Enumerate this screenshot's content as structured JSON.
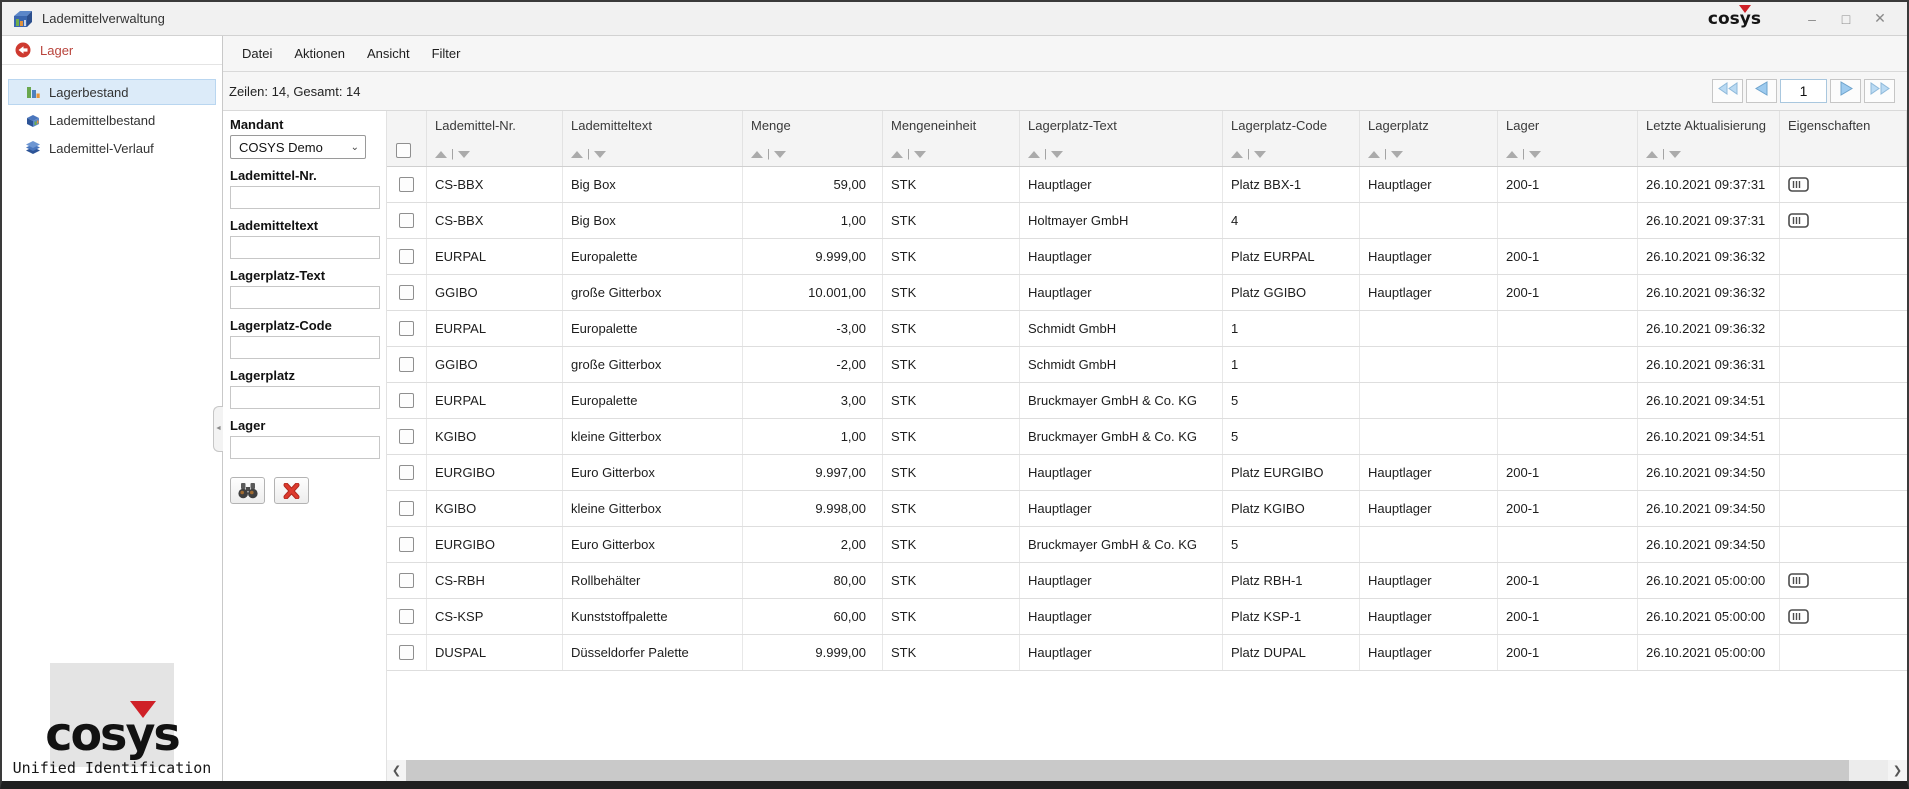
{
  "titlebar": {
    "app_title": "Lademittelverwaltung",
    "brand": "cosys",
    "controls": {
      "minimize": "–",
      "maximize": "□",
      "close": "✕"
    }
  },
  "sidebar": {
    "header": {
      "label": "Lager",
      "icon": "red-circle-arrow-icon"
    },
    "items": [
      {
        "label": "Lagerbestand",
        "icon": "bar-chart-icon",
        "selected": true
      },
      {
        "label": "Lademittelbestand",
        "icon": "box-icon",
        "selected": false
      },
      {
        "label": "Lademittel-Verlauf",
        "icon": "layers-icon",
        "selected": false
      }
    ],
    "logo": {
      "brand": "cosys",
      "subtitle": "Unified Identification"
    }
  },
  "menubar": {
    "items": [
      "Datei",
      "Aktionen",
      "Ansicht",
      "Filter"
    ]
  },
  "statusbar": {
    "rows_info": "Zeilen: 14, Gesamt: 14",
    "pagination": {
      "page": "1",
      "buttons": [
        "first-page",
        "prev-page",
        "next-page",
        "last-page"
      ]
    }
  },
  "filter": {
    "mandant": {
      "label": "Mandant",
      "value": "COSYS Demo"
    },
    "fields": [
      {
        "label": "Lademittel-Nr.",
        "value": ""
      },
      {
        "label": "Lademitteltext",
        "value": ""
      },
      {
        "label": "Lagerplatz-Text",
        "value": ""
      },
      {
        "label": "Lagerplatz-Code",
        "value": ""
      },
      {
        "label": "Lagerplatz",
        "value": ""
      },
      {
        "label": "Lager",
        "value": ""
      }
    ],
    "buttons": [
      {
        "name": "search",
        "icon": "binoculars-icon"
      },
      {
        "name": "clear",
        "icon": "red-x-icon"
      }
    ]
  },
  "table": {
    "columns": [
      {
        "label": "",
        "type": "checkbox",
        "sortable": false
      },
      {
        "label": "Lademittel-Nr.",
        "sortable": true
      },
      {
        "label": "Lademitteltext",
        "sortable": true
      },
      {
        "label": "Menge",
        "sortable": true,
        "align": "right"
      },
      {
        "label": "Mengeneinheit",
        "sortable": true
      },
      {
        "label": "Lagerplatz-Text",
        "sortable": true
      },
      {
        "label": "Lagerplatz-Code",
        "sortable": true
      },
      {
        "label": "Lagerplatz",
        "sortable": true
      },
      {
        "label": "Lager",
        "sortable": true
      },
      {
        "label": "Letzte Aktualisierung",
        "sortable": true
      },
      {
        "label": "Eigenschaften",
        "sortable": false
      }
    ],
    "rows": [
      {
        "lademittel_nr": "CS-BBX",
        "lademitteltext": "Big Box",
        "menge": "59,00",
        "mengeneinheit": "STK",
        "lagerplatz_text": "Hauptlager",
        "lagerplatz_code": "Platz BBX-1",
        "lagerplatz": "Hauptlager",
        "lager": "200-1",
        "letzte_aktualisierung": "26.10.2021 09:37:31",
        "eigenschaften": true
      },
      {
        "lademittel_nr": "CS-BBX",
        "lademitteltext": "Big Box",
        "menge": "1,00",
        "mengeneinheit": "STK",
        "lagerplatz_text": "Holtmayer GmbH",
        "lagerplatz_code": "4",
        "lagerplatz": "",
        "lager": "",
        "letzte_aktualisierung": "26.10.2021 09:37:31",
        "eigenschaften": true
      },
      {
        "lademittel_nr": "EURPAL",
        "lademitteltext": "Europalette",
        "menge": "9.999,00",
        "mengeneinheit": "STK",
        "lagerplatz_text": "Hauptlager",
        "lagerplatz_code": "Platz EURPAL",
        "lagerplatz": "Hauptlager",
        "lager": "200-1",
        "letzte_aktualisierung": "26.10.2021 09:36:32",
        "eigenschaften": false
      },
      {
        "lademittel_nr": "GGIBO",
        "lademitteltext": "große Gitterbox",
        "menge": "10.001,00",
        "mengeneinheit": "STK",
        "lagerplatz_text": "Hauptlager",
        "lagerplatz_code": "Platz GGIBO",
        "lagerplatz": "Hauptlager",
        "lager": "200-1",
        "letzte_aktualisierung": "26.10.2021 09:36:32",
        "eigenschaften": false
      },
      {
        "lademittel_nr": "EURPAL",
        "lademitteltext": "Europalette",
        "menge": "-3,00",
        "mengeneinheit": "STK",
        "lagerplatz_text": "Schmidt GmbH",
        "lagerplatz_code": "1",
        "lagerplatz": "",
        "lager": "",
        "letzte_aktualisierung": "26.10.2021 09:36:32",
        "eigenschaften": false
      },
      {
        "lademittel_nr": "GGIBO",
        "lademitteltext": "große Gitterbox",
        "menge": "-2,00",
        "mengeneinheit": "STK",
        "lagerplatz_text": "Schmidt GmbH",
        "lagerplatz_code": "1",
        "lagerplatz": "",
        "lager": "",
        "letzte_aktualisierung": "26.10.2021 09:36:31",
        "eigenschaften": false
      },
      {
        "lademittel_nr": "EURPAL",
        "lademitteltext": "Europalette",
        "menge": "3,00",
        "mengeneinheit": "STK",
        "lagerplatz_text": "Bruckmayer GmbH & Co. KG",
        "lagerplatz_code": "5",
        "lagerplatz": "",
        "lager": "",
        "letzte_aktualisierung": "26.10.2021 09:34:51",
        "eigenschaften": false
      },
      {
        "lademittel_nr": "KGIBO",
        "lademitteltext": "kleine Gitterbox",
        "menge": "1,00",
        "mengeneinheit": "STK",
        "lagerplatz_text": "Bruckmayer GmbH & Co. KG",
        "lagerplatz_code": "5",
        "lagerplatz": "",
        "lager": "",
        "letzte_aktualisierung": "26.10.2021 09:34:51",
        "eigenschaften": false
      },
      {
        "lademittel_nr": "EURGIBO",
        "lademitteltext": "Euro Gitterbox",
        "menge": "9.997,00",
        "mengeneinheit": "STK",
        "lagerplatz_text": "Hauptlager",
        "lagerplatz_code": "Platz EURGIBO",
        "lagerplatz": "Hauptlager",
        "lager": "200-1",
        "letzte_aktualisierung": "26.10.2021 09:34:50",
        "eigenschaften": false
      },
      {
        "lademittel_nr": "KGIBO",
        "lademitteltext": "kleine Gitterbox",
        "menge": "9.998,00",
        "mengeneinheit": "STK",
        "lagerplatz_text": "Hauptlager",
        "lagerplatz_code": "Platz KGIBO",
        "lagerplatz": "Hauptlager",
        "lager": "200-1",
        "letzte_aktualisierung": "26.10.2021 09:34:50",
        "eigenschaften": false
      },
      {
        "lademittel_nr": "EURGIBO",
        "lademitteltext": "Euro Gitterbox",
        "menge": "2,00",
        "mengeneinheit": "STK",
        "lagerplatz_text": "Bruckmayer GmbH & Co. KG",
        "lagerplatz_code": "5",
        "lagerplatz": "",
        "lager": "",
        "letzte_aktualisierung": "26.10.2021 09:34:50",
        "eigenschaften": false
      },
      {
        "lademittel_nr": "CS-RBH",
        "lademitteltext": "Rollbehälter",
        "menge": "80,00",
        "mengeneinheit": "STK",
        "lagerplatz_text": "Hauptlager",
        "lagerplatz_code": "Platz RBH-1",
        "lagerplatz": "Hauptlager",
        "lager": "200-1",
        "letzte_aktualisierung": "26.10.2021 05:00:00",
        "eigenschaften": true
      },
      {
        "lademittel_nr": "CS-KSP",
        "lademitteltext": "Kunststoffpalette",
        "menge": "60,00",
        "mengeneinheit": "STK",
        "lagerplatz_text": "Hauptlager",
        "lagerplatz_code": "Platz KSP-1",
        "lagerplatz": "Hauptlager",
        "lager": "200-1",
        "letzte_aktualisierung": "26.10.2021 05:00:00",
        "eigenschaften": true
      },
      {
        "lademittel_nr": "DUSPAL",
        "lademitteltext": "Düsseldorfer Palette",
        "menge": "9.999,00",
        "mengeneinheit": "STK",
        "lagerplatz_text": "Hauptlager",
        "lagerplatz_code": "Platz DUPAL",
        "lagerplatz": "Hauptlager",
        "lager": "200-1",
        "letzte_aktualisierung": "26.10.2021 05:00:00",
        "eigenschaften": false
      }
    ]
  },
  "colors": {
    "accent_red": "#cf2027",
    "selection_bg": "#dcebf9",
    "pagination_arrow": "#9ecbef"
  }
}
